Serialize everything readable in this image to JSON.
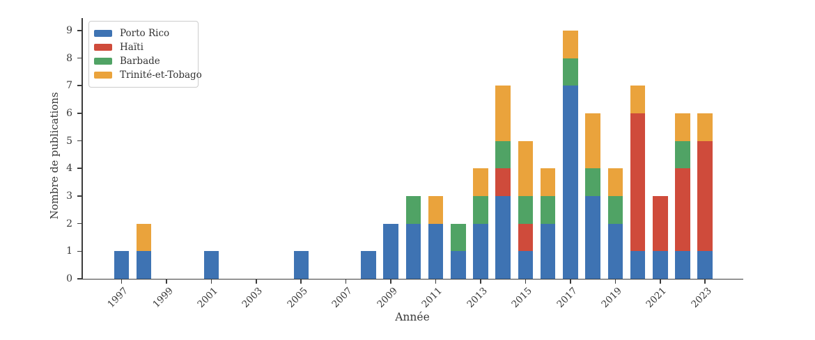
{
  "figure": {
    "background": "#ffffff",
    "axis_color": "#3b3b3b",
    "text_color": "#383838"
  },
  "axes": {
    "xlabel": "Année",
    "ylabel": "Nombre de publications"
  },
  "legend": {
    "position": "upper left",
    "entries": [
      {
        "label": "Porto Rico",
        "color": "#3e73b3"
      },
      {
        "label": "Haïti",
        "color": "#cf4b3b"
      },
      {
        "label": "Barbade",
        "color": "#50a365"
      },
      {
        "label": "Trinité-et-Tobago",
        "color": "#eaa33c"
      }
    ]
  },
  "chart_data": {
    "type": "bar",
    "stacked": true,
    "title": "",
    "xlabel": "Année",
    "ylabel": "Nombre de publications",
    "ylim": [
      0,
      9
    ],
    "yticks": [
      0,
      1,
      2,
      3,
      4,
      5,
      6,
      7,
      8,
      9
    ],
    "xticks": [
      1997,
      1999,
      2001,
      2003,
      2005,
      2007,
      2009,
      2011,
      2013,
      2015,
      2017,
      2019,
      2021,
      2023
    ],
    "grid": false,
    "legend_position": "upper left",
    "categories": [
      1997,
      1998,
      1999,
      2000,
      2001,
      2002,
      2003,
      2004,
      2005,
      2006,
      2007,
      2008,
      2009,
      2010,
      2011,
      2012,
      2013,
      2014,
      2015,
      2016,
      2017,
      2018,
      2019,
      2020,
      2021,
      2022,
      2023
    ],
    "series": [
      {
        "name": "Porto Rico",
        "color": "#3e73b3",
        "values": [
          1,
          1,
          0,
          0,
          1,
          0,
          0,
          0,
          1,
          0,
          0,
          1,
          2,
          2,
          2,
          1,
          2,
          3,
          1,
          2,
          7,
          3,
          2,
          1,
          1,
          1,
          1
        ]
      },
      {
        "name": "Haïti",
        "color": "#cf4b3b",
        "values": [
          0,
          0,
          0,
          0,
          0,
          0,
          0,
          0,
          0,
          0,
          0,
          0,
          0,
          0,
          0,
          0,
          0,
          1,
          1,
          0,
          0,
          0,
          0,
          5,
          2,
          3,
          4
        ]
      },
      {
        "name": "Barbade",
        "color": "#50a365",
        "values": [
          0,
          0,
          0,
          0,
          0,
          0,
          0,
          0,
          0,
          0,
          0,
          0,
          0,
          1,
          0,
          1,
          1,
          1,
          1,
          1,
          1,
          1,
          1,
          0,
          0,
          1,
          0
        ]
      },
      {
        "name": "Trinité-et-Tobago",
        "color": "#eaa33c",
        "values": [
          0,
          1,
          0,
          0,
          0,
          0,
          0,
          0,
          0,
          0,
          0,
          0,
          0,
          0,
          1,
          0,
          1,
          2,
          2,
          1,
          1,
          2,
          1,
          1,
          0,
          1,
          1
        ]
      }
    ]
  }
}
